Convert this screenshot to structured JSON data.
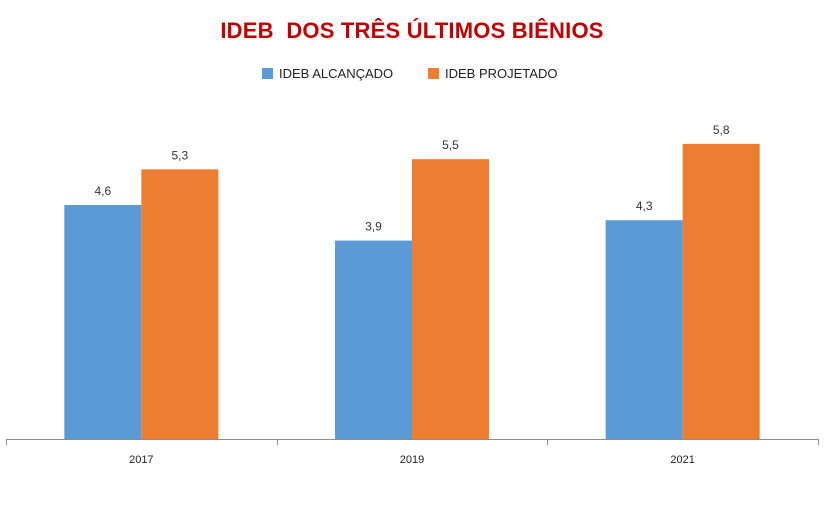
{
  "chart_data": {
    "type": "bar",
    "title": "IDEB  DOS TRÊS ÚLTIMOS BIÊNIOS",
    "categories": [
      "2017",
      "2019",
      "2021"
    ],
    "series": [
      {
        "name": "IDEB ALCANÇADO",
        "color": "#5b9bd5",
        "values": [
          4.6,
          3.9,
          4.3
        ],
        "labels": [
          "4,6",
          "3,9",
          "4,3"
        ]
      },
      {
        "name": "IDEB PROJETADO",
        "color": "#ed7d31",
        "values": [
          5.3,
          5.5,
          5.8
        ],
        "labels": [
          "5,3",
          "5,5",
          "5,8"
        ]
      }
    ],
    "ylim": [
      0,
      6.8
    ],
    "legend": "top",
    "grid": false
  }
}
